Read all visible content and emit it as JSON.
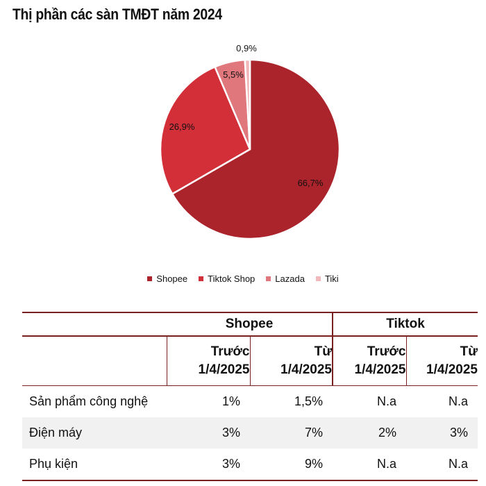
{
  "chart_data": {
    "type": "pie",
    "title": "Thị phần các sàn TMĐT năm 2024",
    "slices": [
      {
        "name": "Shopee",
        "value": 66.7,
        "label": "66,7%",
        "color": "#ab232b"
      },
      {
        "name": "Tiktok Shop",
        "value": 26.9,
        "label": "26,9%",
        "color": "#d22f38"
      },
      {
        "name": "Lazada",
        "value": 5.5,
        "label": "5,5%",
        "color": "#e0777c"
      },
      {
        "name": "Tiki",
        "value": 0.9,
        "label": "0,9%",
        "color": "#f1b9bc"
      }
    ],
    "legend_position": "bottom"
  },
  "table": {
    "groups": [
      "Shopee",
      "Tiktok"
    ],
    "subheaders": [
      [
        "Trước",
        "1/4/2025"
      ],
      [
        "Từ",
        "1/4/2025"
      ],
      [
        "Trước",
        "1/4/2025"
      ],
      [
        "Từ",
        "1/4/2025"
      ]
    ],
    "rows": [
      {
        "label": "Sản phẩm công nghệ",
        "values": [
          "1%",
          "1,5%",
          "N.a",
          "N.a"
        ]
      },
      {
        "label": "Điện máy",
        "values": [
          "3%",
          "7%",
          "2%",
          "3%"
        ]
      },
      {
        "label": "Phụ kiện",
        "values": [
          "3%",
          "9%",
          "N.a",
          "N.a"
        ]
      }
    ]
  }
}
